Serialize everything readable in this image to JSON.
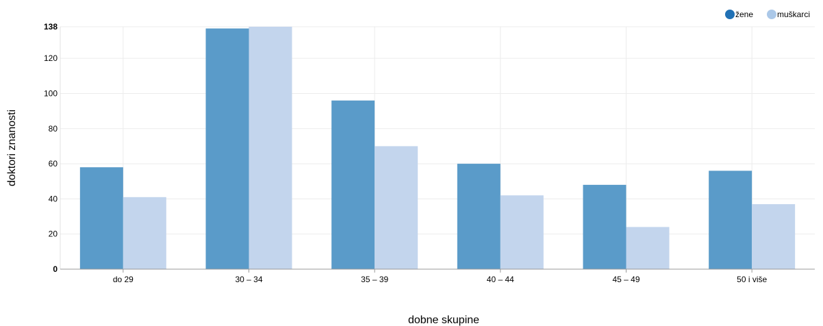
{
  "chart_data": {
    "type": "bar",
    "categories": [
      "do 29",
      "30 – 34",
      "35 – 39",
      "40 – 44",
      "45 – 49",
      "50 i više"
    ],
    "series": [
      {
        "name": "žene",
        "values": [
          58,
          137,
          96,
          60,
          48,
          56
        ],
        "color": "#5a9bc9"
      },
      {
        "name": "muškarci",
        "values": [
          41,
          138,
          70,
          42,
          24,
          37
        ],
        "color": "#c3d5ed"
      }
    ],
    "legend_colors": [
      "#2171b5",
      "#abc8e8"
    ],
    "xlabel": "dobne skupine",
    "ylabel": "doktori znanosti",
    "ylim": [
      0,
      138
    ],
    "yticks": [
      0,
      20,
      40,
      60,
      80,
      100,
      120,
      138
    ],
    "grid": true,
    "legend_position": "top-right"
  }
}
